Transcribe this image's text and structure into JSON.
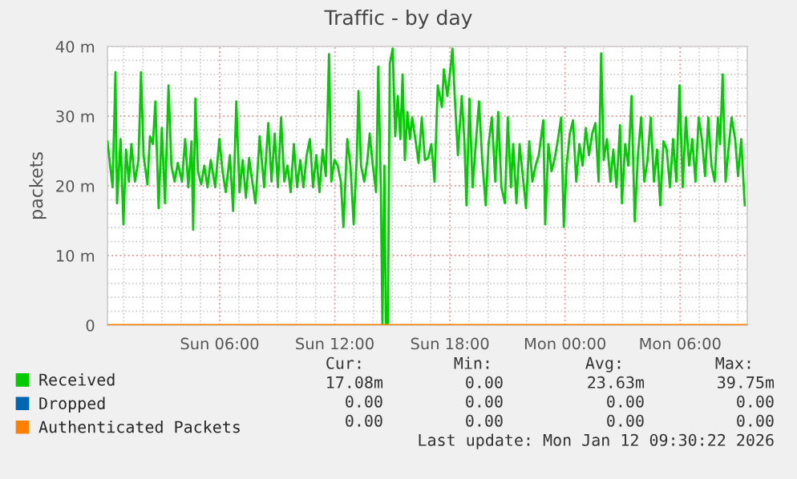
{
  "chart_data": {
    "type": "line",
    "title": "Traffic - by day",
    "ylabel": "packets",
    "xlim": [
      "2026-01-11T00:09",
      "2026-01-12T09:30"
    ],
    "xticks": [
      {
        "value": "2026-01-11T06:00",
        "label": "Sun 06:00"
      },
      {
        "value": "2026-01-11T12:00",
        "label": "Sun 12:00"
      },
      {
        "value": "2026-01-11T18:00",
        "label": "Sun 18:00"
      },
      {
        "value": "2026-01-12T00:00",
        "label": "Mon 00:00"
      },
      {
        "value": "2026-01-12T06:00",
        "label": "Mon 06:00"
      }
    ],
    "ylim": [
      0,
      40
    ],
    "yticks": [
      0,
      {
        "value": 10,
        "label": "10 m"
      },
      {
        "value": 20,
        "label": "20 m"
      },
      {
        "value": 30,
        "label": "30 m"
      },
      {
        "value": 40,
        "label": "40 m"
      }
    ],
    "grid": true,
    "legend": "bottom",
    "series": [
      {
        "name": "Received",
        "color": "#00cc00",
        "x": [
          "2026-01-11T00:09",
          "2026-01-11T00:25",
          "2026-01-11T00:34",
          "2026-01-11T00:39",
          "2026-01-11T00:50",
          "2026-01-11T00:59",
          "2026-01-11T01:07",
          "2026-01-11T01:16",
          "2026-01-11T01:24",
          "2026-01-11T01:35",
          "2026-01-11T01:46",
          "2026-01-11T01:54",
          "2026-01-11T02:02",
          "2026-01-11T02:14",
          "2026-01-11T02:22",
          "2026-01-11T02:31",
          "2026-01-11T02:39",
          "2026-01-11T02:49",
          "2026-01-11T02:59",
          "2026-01-11T03:09",
          "2026-01-11T03:20",
          "2026-01-11T03:29",
          "2026-01-11T03:39",
          "2026-01-11T03:49",
          "2026-01-11T04:02",
          "2026-01-11T04:12",
          "2026-01-11T04:22",
          "2026-01-11T04:32",
          "2026-01-11T04:37",
          "2026-01-11T04:44",
          "2026-01-11T04:52",
          "2026-01-11T05:02",
          "2026-01-11T05:12",
          "2026-01-11T05:22",
          "2026-01-11T05:32",
          "2026-01-11T05:46",
          "2026-01-11T05:59",
          "2026-01-11T06:09",
          "2026-01-11T06:19",
          "2026-01-11T06:32",
          "2026-01-11T06:42",
          "2026-01-11T06:52",
          "2026-01-11T07:02",
          "2026-01-11T07:12",
          "2026-01-11T07:22",
          "2026-01-11T07:32",
          "2026-01-11T07:42",
          "2026-01-11T07:52",
          "2026-01-11T08:05",
          "2026-01-11T08:19",
          "2026-01-11T08:32",
          "2026-01-11T08:42",
          "2026-01-11T08:52",
          "2026-01-11T09:02",
          "2026-01-11T09:12",
          "2026-01-11T09:22",
          "2026-01-11T09:32",
          "2026-01-11T09:42",
          "2026-01-11T09:52",
          "2026-01-11T10:02",
          "2026-01-11T10:12",
          "2026-01-11T10:22",
          "2026-01-11T10:32",
          "2026-01-11T10:42",
          "2026-01-11T10:52",
          "2026-01-11T11:02",
          "2026-01-11T11:12",
          "2026-01-11T11:22",
          "2026-01-11T11:32",
          "2026-01-11T11:42",
          "2026-01-11T11:49",
          "2026-01-11T11:59",
          "2026-01-11T12:09",
          "2026-01-11T12:19",
          "2026-01-11T12:27",
          "2026-01-11T12:39",
          "2026-01-11T12:49",
          "2026-01-11T12:59",
          "2026-01-11T13:09",
          "2026-01-11T13:14",
          "2026-01-11T13:22",
          "2026-01-11T13:32",
          "2026-01-11T13:42",
          "2026-01-11T13:49",
          "2026-01-11T13:59",
          "2026-01-11T14:09",
          "2026-01-11T14:16",
          "2026-01-11T14:24",
          "2026-01-11T14:29",
          "2026-01-11T14:35",
          "2026-01-11T14:40",
          "2026-01-11T14:46",
          "2026-01-11T14:52",
          "2026-01-11T15:01",
          "2026-01-11T15:09",
          "2026-01-11T15:17",
          "2026-01-11T15:25",
          "2026-01-11T15:32",
          "2026-01-11T15:39",
          "2026-01-11T15:47",
          "2026-01-11T15:55",
          "2026-01-11T16:02",
          "2026-01-11T16:12",
          "2026-01-11T16:22",
          "2026-01-11T16:32",
          "2026-01-11T16:42",
          "2026-01-11T16:52",
          "2026-01-11T17:02",
          "2026-01-11T17:12",
          "2026-01-11T17:22",
          "2026-01-11T17:35",
          "2026-01-11T17:41",
          "2026-01-11T17:52",
          "2026-01-11T17:58",
          "2026-01-11T18:08",
          "2026-01-11T18:15",
          "2026-01-11T18:25",
          "2026-01-11T18:37",
          "2026-01-11T18:45",
          "2026-01-11T18:52",
          "2026-01-11T19:01",
          "2026-01-11T19:11",
          "2026-01-11T19:22",
          "2026-01-11T19:31",
          "2026-01-11T19:41",
          "2026-01-11T19:52",
          "2026-01-11T20:01",
          "2026-01-11T20:11",
          "2026-01-11T20:22",
          "2026-01-11T20:31",
          "2026-01-11T20:41",
          "2026-01-11T20:52",
          "2026-01-11T21:01",
          "2026-01-11T21:11",
          "2026-01-11T21:18",
          "2026-01-11T21:28",
          "2026-01-11T21:38",
          "2026-01-11T21:48",
          "2026-01-11T21:58",
          "2026-01-11T22:08",
          "2026-01-11T22:18",
          "2026-01-11T22:28",
          "2026-01-11T22:38",
          "2026-01-11T22:52",
          "2026-01-11T22:58",
          "2026-01-11T23:08",
          "2026-01-11T23:18",
          "2026-01-11T23:28",
          "2026-01-11T23:38",
          "2026-01-11T23:48",
          "2026-01-11T23:56",
          "2026-01-12T00:05",
          "2026-01-12T00:15",
          "2026-01-12T00:25",
          "2026-01-12T00:35",
          "2026-01-12T00:45",
          "2026-01-12T00:55",
          "2026-01-12T01:05",
          "2026-01-12T01:15",
          "2026-01-12T01:25",
          "2026-01-12T01:35",
          "2026-01-12T01:45",
          "2026-01-12T01:53",
          "2026-01-12T02:01",
          "2026-01-12T02:11",
          "2026-01-12T02:22",
          "2026-01-12T02:31",
          "2026-01-12T02:41",
          "2026-01-12T02:52",
          "2026-01-12T02:58",
          "2026-01-12T03:08",
          "2026-01-12T03:18",
          "2026-01-12T03:28",
          "2026-01-12T03:38",
          "2026-01-12T03:48",
          "2026-01-12T03:58",
          "2026-01-12T04:08",
          "2026-01-12T04:18",
          "2026-01-12T04:28",
          "2026-01-12T04:38",
          "2026-01-12T04:48",
          "2026-01-12T04:58",
          "2026-01-12T05:08",
          "2026-01-12T05:18",
          "2026-01-12T05:28",
          "2026-01-12T05:38",
          "2026-01-12T05:48",
          "2026-01-12T05:58",
          "2026-01-12T06:08",
          "2026-01-12T06:18",
          "2026-01-12T06:28",
          "2026-01-12T06:38",
          "2026-01-12T06:48",
          "2026-01-12T06:58",
          "2026-01-12T07:08",
          "2026-01-12T07:18",
          "2026-01-12T07:28",
          "2026-01-12T07:38",
          "2026-01-12T07:48",
          "2026-01-12T07:58",
          "2026-01-12T08:05",
          "2026-01-12T08:13",
          "2026-01-12T08:22",
          "2026-01-12T08:31",
          "2026-01-12T08:41",
          "2026-01-12T08:52",
          "2026-01-12T09:01",
          "2026-01-12T09:11",
          "2026-01-12T09:22"
        ],
        "values": [
          26.4,
          19.8,
          36.3,
          17.5,
          26.7,
          14.5,
          25.2,
          20.6,
          26,
          20.6,
          23.7,
          36.3,
          24.4,
          20.2,
          27.1,
          26,
          32.1,
          16.8,
          28.3,
          17.5,
          34.4,
          22.9,
          20.6,
          23.3,
          20.6,
          26.7,
          19.8,
          26.4,
          13.7,
          32.5,
          22.1,
          20.2,
          22.9,
          19.8,
          23.7,
          19.8,
          26.7,
          22.1,
          19.1,
          24.4,
          16.4,
          32.1,
          19.1,
          23.7,
          18.3,
          24,
          20.6,
          17.5,
          27.1,
          19.8,
          29,
          20.6,
          27.5,
          19.8,
          29.8,
          20.6,
          22.9,
          19.1,
          26,
          19.8,
          23.7,
          19.8,
          24.4,
          26.7,
          19.8,
          24.4,
          19.1,
          25.2,
          21.4,
          38.9,
          20.6,
          23.7,
          22.9,
          20.6,
          14.1,
          26.7,
          22.9,
          14.5,
          24.4,
          33.6,
          22.9,
          20.6,
          23.7,
          27.5,
          22.9,
          19.1,
          37.1,
          19.8,
          0,
          22.9,
          0,
          0,
          37.5,
          39.7,
          27.1,
          32.9,
          26.7,
          36,
          23.7,
          30.6,
          26.7,
          29.8,
          26.7,
          23.3,
          29.8,
          23.7,
          24,
          26,
          20.6,
          34.4,
          31.3,
          36.7,
          32.9,
          35.2,
          39.7,
          32.9,
          24.4,
          32.9,
          26.7,
          17.2,
          32.5,
          19.8,
          26.7,
          32.1,
          23.7,
          17.2,
          26,
          29.8,
          20.6,
          30.6,
          19.8,
          17.5,
          29.8,
          19.8,
          26,
          17.5,
          26,
          21.4,
          16.8,
          26.4,
          20.6,
          22.9,
          24.4,
          29.4,
          14.5,
          26,
          22.1,
          24,
          26.7,
          29.8,
          14.1,
          22.9,
          27.5,
          29.4,
          20.6,
          26,
          22.9,
          28.3,
          24.4,
          27.5,
          29,
          20.6,
          39,
          23.7,
          26.7,
          20.6,
          25.2,
          19.8,
          28.7,
          17.5,
          26,
          22.9,
          32.9,
          14.9,
          24.4,
          29.8,
          20.6,
          23.7,
          29.8,
          20.6,
          25.2,
          17.2,
          26.4,
          25.2,
          19.8,
          26.7,
          20.6,
          34.4,
          19.8,
          29.8,
          22.9,
          26.7,
          20.6,
          29.8,
          26.7,
          21.4,
          29.8,
          22.9,
          20.6,
          29.8,
          26,
          36,
          20.6,
          25.2,
          29.8,
          26.7,
          21.4,
          26.7,
          17.2
        ]
      },
      {
        "name": "Dropped",
        "color": "#0066b3"
      },
      {
        "name": "Authenticated Packets",
        "color": "#ff8000",
        "x": [
          "2026-01-11T00:09",
          "2026-01-12T09:30"
        ],
        "values": [
          0,
          0
        ]
      }
    ],
    "annotations": [
      "Cur:",
      "Min:",
      "Avg:",
      "Max:",
      "17.08m",
      "0.00",
      "23.63m",
      "39.75m",
      "0.00",
      "0.00",
      "0.00",
      "0.00",
      "0.00",
      "0.00",
      "0.00",
      "0.00",
      "Last update: Mon Jan 12 09:30:22 2026"
    ]
  }
}
